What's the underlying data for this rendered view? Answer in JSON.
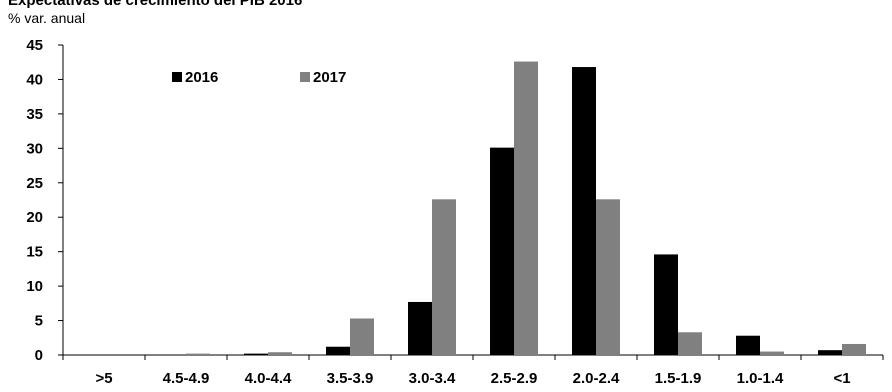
{
  "chart_data": {
    "type": "bar",
    "title": "Expectativas de crecimiento del PIB 2016",
    "ylabel": "% var. anual",
    "xlabel": "",
    "ylim": [
      0,
      45
    ],
    "yticks": [
      0,
      5,
      10,
      15,
      20,
      25,
      30,
      35,
      40,
      45
    ],
    "categories": [
      ">5",
      "4.5-4.9",
      "4.0-4.4",
      "3.5-3.9",
      "3.0-3.4",
      "2.5-2.9",
      "2.0-2.4",
      "1.5-1.9",
      "1.0-1.4",
      "<1"
    ],
    "series": [
      {
        "name": "2016",
        "color": "#000000",
        "values": [
          0,
          0,
          0.2,
          1.2,
          7.7,
          30.1,
          41.8,
          14.6,
          2.8,
          0.7
        ]
      },
      {
        "name": "2017",
        "color": "#808080",
        "values": [
          0,
          0.2,
          0.4,
          5.3,
          22.6,
          42.6,
          22.6,
          3.3,
          0.5,
          1.6
        ]
      }
    ],
    "legend_placement": "top-left",
    "grid": false
  }
}
